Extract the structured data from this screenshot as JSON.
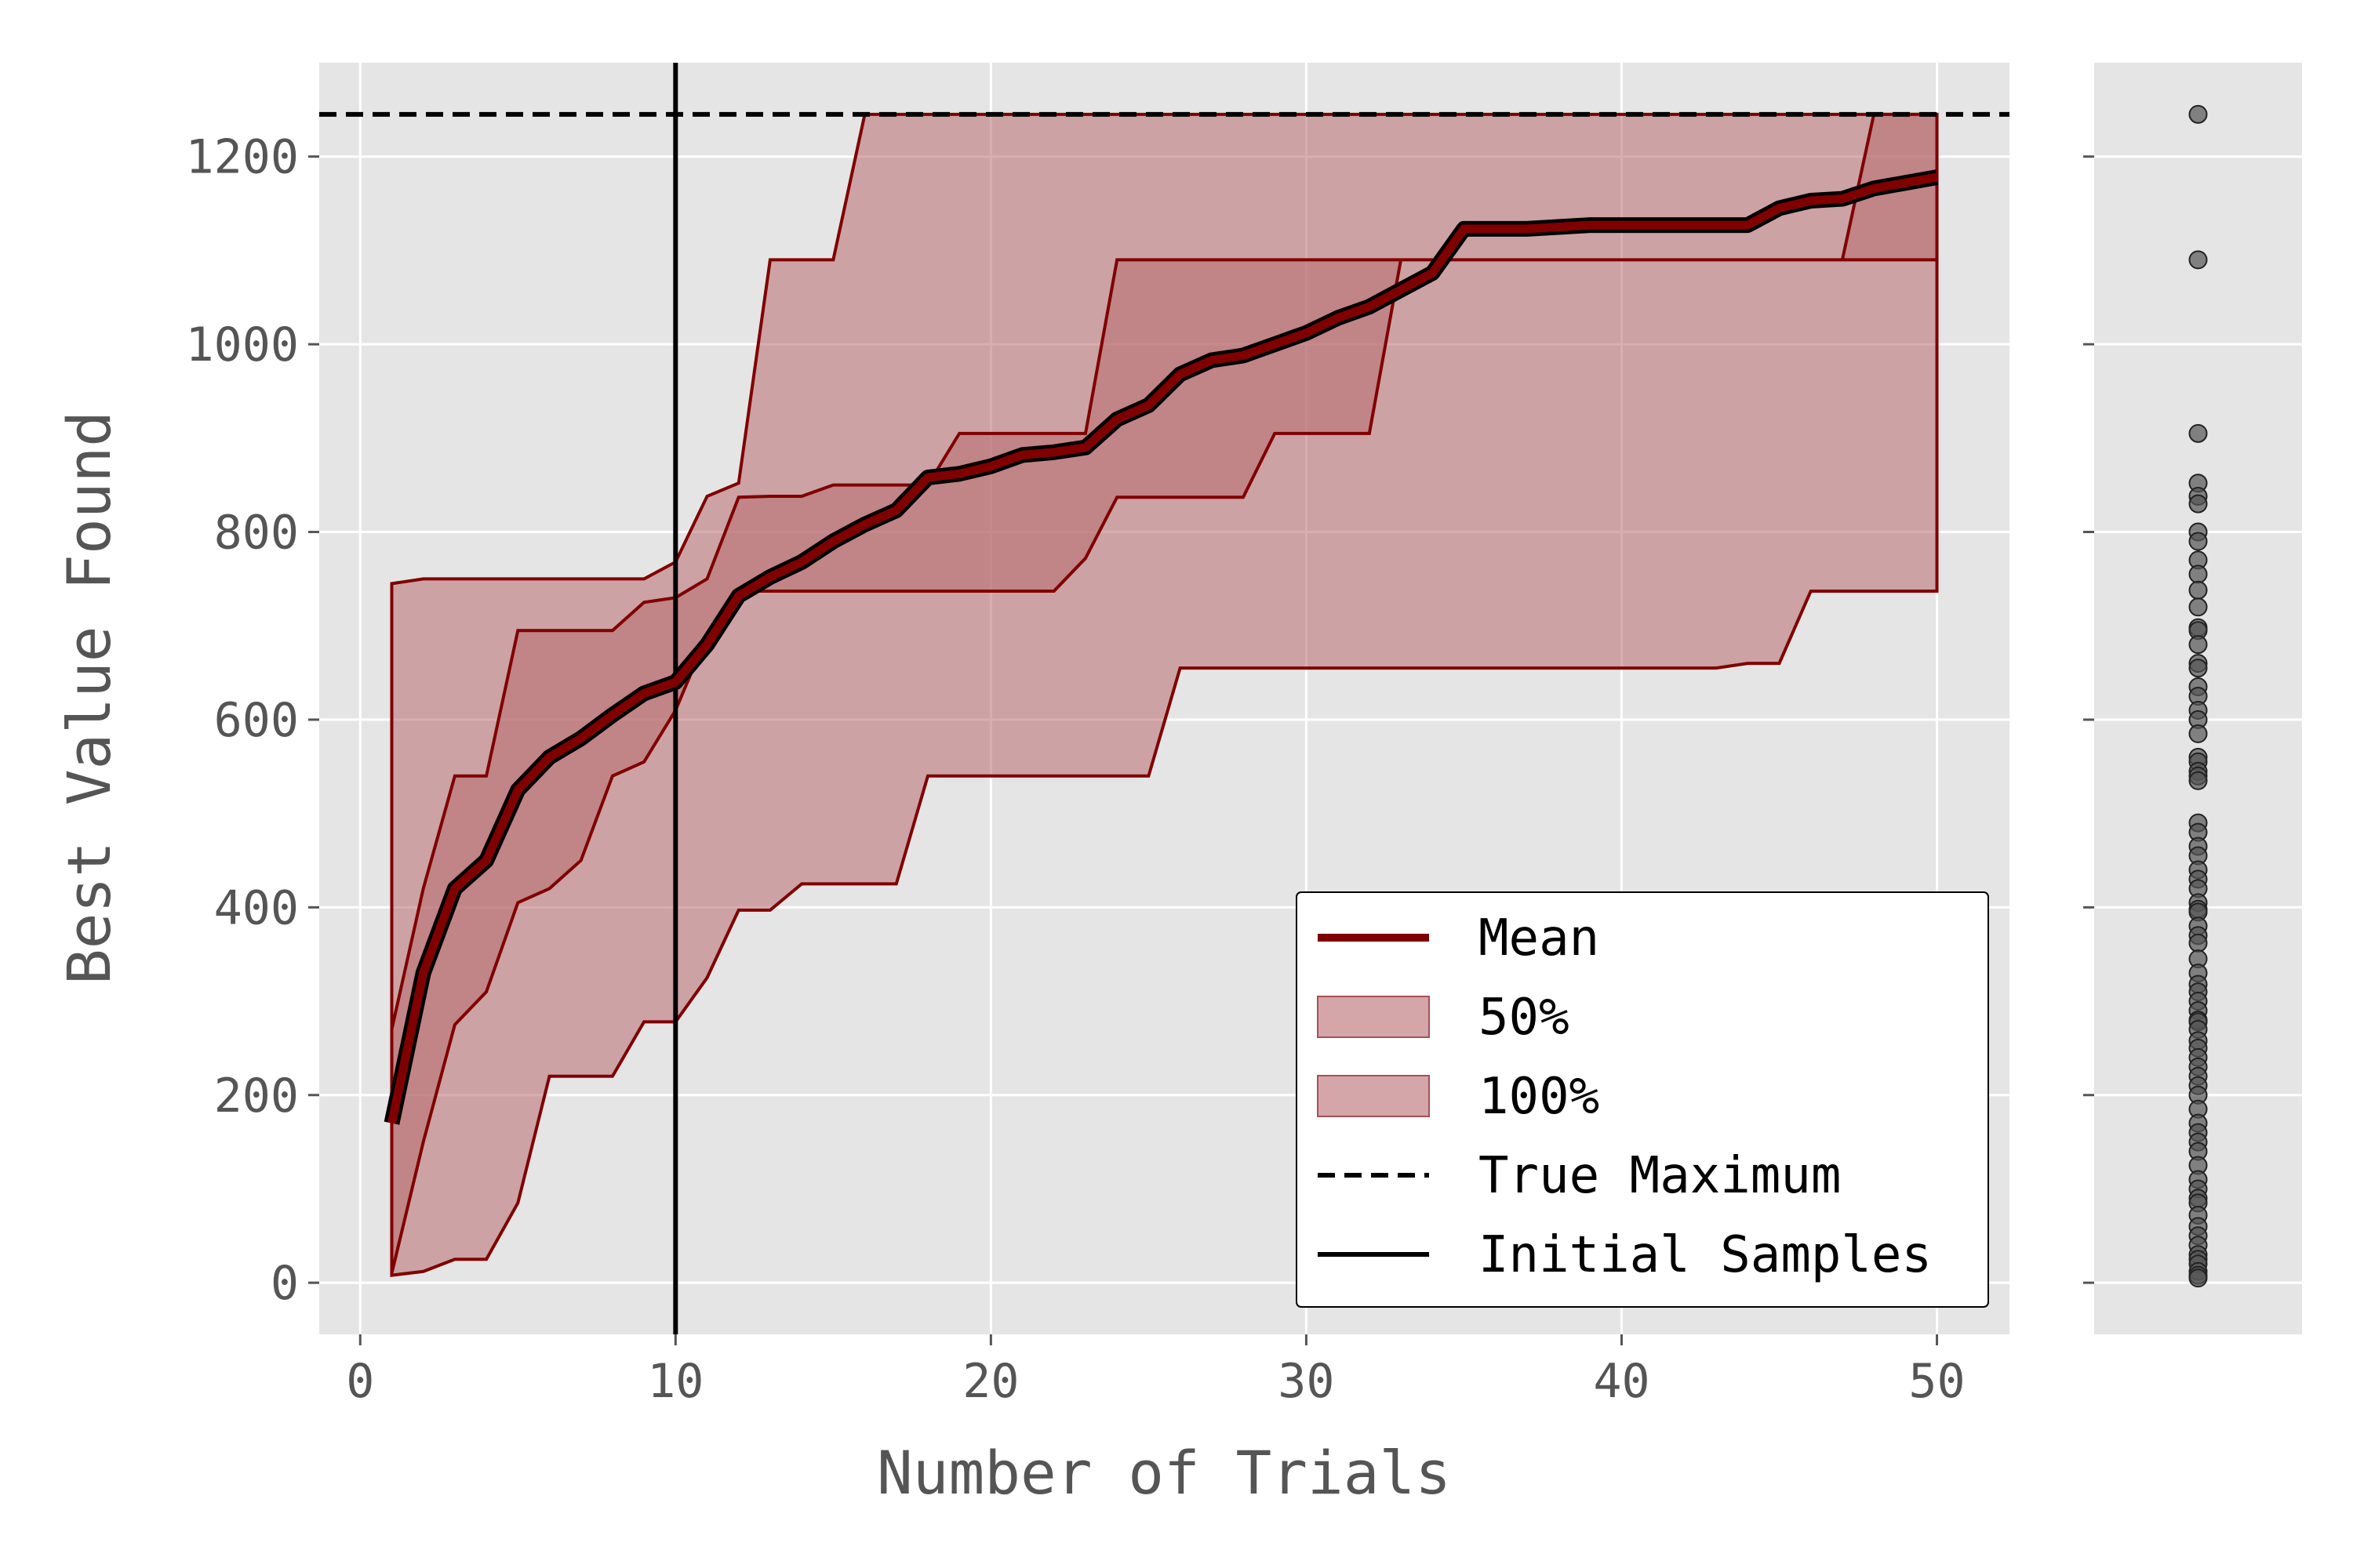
{
  "chart_data": {
    "type": "line",
    "xlabel": "Number of Trials",
    "ylabel": "Best Value Found",
    "xlim": [
      -1.3,
      52.3
    ],
    "ylim": [
      -55,
      1300
    ],
    "xticks": [
      0,
      10,
      20,
      30,
      40,
      50
    ],
    "yticks": [
      0,
      200,
      400,
      600,
      800,
      1000,
      1200
    ],
    "grid": true,
    "legend_position": "lower-right",
    "colors": {
      "series": "#800000",
      "band_fill": "#b86b70",
      "reference": "#000000",
      "plot_bg": "#e5e5e5",
      "grid": "#ffffff",
      "scatter": "#555555"
    },
    "x": [
      1,
      2,
      3,
      4,
      5,
      6,
      7,
      8,
      9,
      10,
      11,
      12,
      13,
      14,
      15,
      16,
      17,
      18,
      19,
      20,
      21,
      22,
      23,
      24,
      25,
      26,
      27,
      28,
      29,
      30,
      31,
      32,
      33,
      34,
      35,
      36,
      37,
      38,
      39,
      40,
      41,
      42,
      43,
      44,
      45,
      46,
      47,
      48,
      49,
      50
    ],
    "series": [
      {
        "name": "Mean",
        "values": [
          170,
          330,
          420,
          450,
          525,
          560,
          580,
          605,
          628,
          640,
          680,
          732,
          752,
          768,
          790,
          808,
          823,
          858,
          862,
          870,
          882,
          885,
          890,
          920,
          935,
          968,
          983,
          988,
          1000,
          1012,
          1028,
          1040,
          1058,
          1076,
          1123,
          1123,
          1123,
          1125,
          1127,
          1127,
          1127,
          1127,
          1127,
          1127,
          1145,
          1153,
          1155,
          1166,
          1172,
          1178
        ]
      }
    ],
    "bands": [
      {
        "name": "50%",
        "upper": [
          270,
          420,
          540,
          540,
          695,
          695,
          695,
          695,
          725,
          730,
          750,
          837,
          838,
          838,
          850,
          850,
          850,
          850,
          905,
          905,
          905,
          905,
          905,
          1090,
          1090,
          1090,
          1090,
          1090,
          1090,
          1090,
          1090,
          1090,
          1090,
          1090,
          1090,
          1090,
          1090,
          1090,
          1090,
          1090,
          1090,
          1090,
          1090,
          1090,
          1090,
          1090,
          1090,
          1245,
          1245,
          1245
        ],
        "lower": [
          10,
          150,
          275,
          310,
          405,
          420,
          450,
          540,
          555,
          610,
          690,
          737,
          737,
          737,
          737,
          737,
          737,
          737,
          737,
          737,
          737,
          737,
          772,
          837,
          837,
          837,
          837,
          837,
          905,
          905,
          905,
          905,
          1090,
          1090,
          1090,
          1090,
          1090,
          1090,
          1090,
          1090,
          1090,
          1090,
          1090,
          1090,
          1090,
          1090,
          1090,
          1090,
          1090,
          1090
        ]
      },
      {
        "name": "100%",
        "upper": [
          745,
          750,
          750,
          750,
          750,
          750,
          750,
          750,
          750,
          768,
          838,
          852,
          1090,
          1090,
          1090,
          1245,
          1245,
          1245,
          1245,
          1245,
          1245,
          1245,
          1245,
          1245,
          1245,
          1245,
          1245,
          1245,
          1245,
          1245,
          1245,
          1245,
          1245,
          1245,
          1245,
          1245,
          1245,
          1245,
          1245,
          1245,
          1245,
          1245,
          1245,
          1245,
          1245,
          1245,
          1245,
          1245,
          1245,
          1245
        ],
        "lower": [
          8,
          12,
          25,
          25,
          85,
          220,
          220,
          220,
          278,
          278,
          325,
          397,
          397,
          425,
          425,
          425,
          425,
          540,
          540,
          540,
          540,
          540,
          540,
          540,
          540,
          655,
          655,
          655,
          655,
          655,
          655,
          655,
          655,
          655,
          655,
          655,
          655,
          655,
          655,
          655,
          655,
          655,
          655,
          660,
          660,
          737,
          737,
          737,
          737,
          737
        ]
      }
    ],
    "reference_lines": [
      {
        "name": "True Maximum",
        "orientation": "horizontal",
        "value": 1245,
        "style": "dashed"
      },
      {
        "name": "Initial Samples",
        "orientation": "vertical",
        "value": 10,
        "style": "solid"
      }
    ],
    "side_scatter": {
      "ylim": [
        -55,
        1300
      ],
      "values": [
        1245,
        1090,
        905,
        852,
        838,
        830,
        800,
        790,
        770,
        755,
        738,
        720,
        698,
        695,
        680,
        660,
        655,
        635,
        625,
        610,
        600,
        585,
        560,
        555,
        545,
        540,
        535,
        490,
        480,
        465,
        455,
        440,
        430,
        420,
        405,
        398,
        395,
        380,
        370,
        362,
        345,
        330,
        318,
        310,
        300,
        290,
        280,
        278,
        270,
        258,
        250,
        240,
        230,
        220,
        210,
        200,
        185,
        170,
        160,
        150,
        140,
        125,
        110,
        100,
        90,
        85,
        72,
        60,
        50,
        40,
        30,
        25,
        20,
        12,
        8,
        5
      ]
    },
    "legend": [
      "Mean",
      "50%",
      "100%",
      "True Maximum",
      "Initial Samples"
    ]
  }
}
